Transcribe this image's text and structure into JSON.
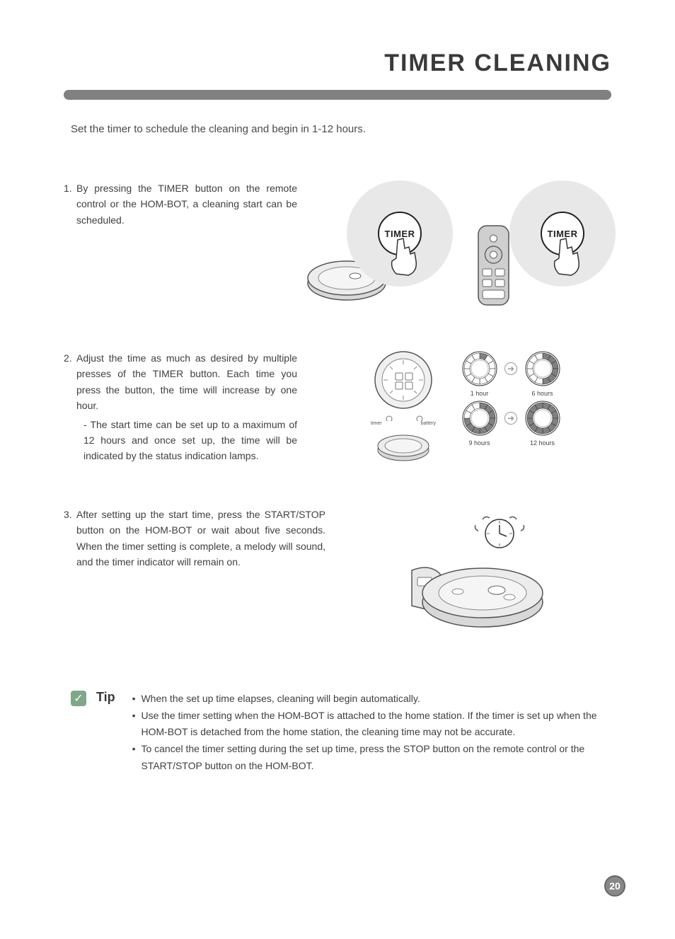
{
  "title": "TIMER CLEANING",
  "intro": "Set the timer to schedule the cleaning and begin in 1-12 hours.",
  "steps": {
    "s1": {
      "num": "1.",
      "body": "By pressing the TIMER button on the remote control or the HOM-BOT, a cleaning start can be scheduled."
    },
    "s2": {
      "num": "2.",
      "body": "Adjust the time as much as desired by multiple presses of the TIMER button. Each time you press the button, the time will increase by one hour.",
      "sub": "- The start time can be set up to a maximum of 12 hours and once set up, the time will be indicated by the status indication lamps."
    },
    "s3": {
      "num": "3.",
      "body": "After setting up the start time, press the START/STOP button on the HOM-BOT or wait about five seconds. When the timer setting is complete, a melody will sound, and the timer indicator will remain on."
    }
  },
  "fig": {
    "timer_label": "TIMER",
    "panel": {
      "timer": "timer",
      "battery": "battery"
    },
    "dials": {
      "h1": "1 hour",
      "h6": "6 hours",
      "h9": "9 hours",
      "h12": "12 hours",
      "segments": {
        "h1": 1,
        "h6": 6,
        "h9": 9,
        "h12": 12
      },
      "fill_color": "#808080",
      "empty_color": "#ffffff",
      "stroke": "#333333"
    }
  },
  "tip": {
    "label": "Tip",
    "items": [
      "When the set up time elapses, cleaning will begin automatically.",
      "Use the timer setting when the HOM-BOT is attached to the home station. If the timer is set up when the HOM-BOT is detached from the home station, the cleaning time may not be accurate.",
      "To cancel the timer setting during the set up time, press the STOP button on the remote control or the START/STOP button on the HOM-BOT."
    ]
  },
  "page_number": "20",
  "colors": {
    "text": "#4a4a4a",
    "rule": "#808080",
    "tip_badge": "#7fa88a",
    "pagenum_border": "#666666",
    "pagenum_fill": "#888888",
    "circle_fill": "#e8e8e8"
  }
}
